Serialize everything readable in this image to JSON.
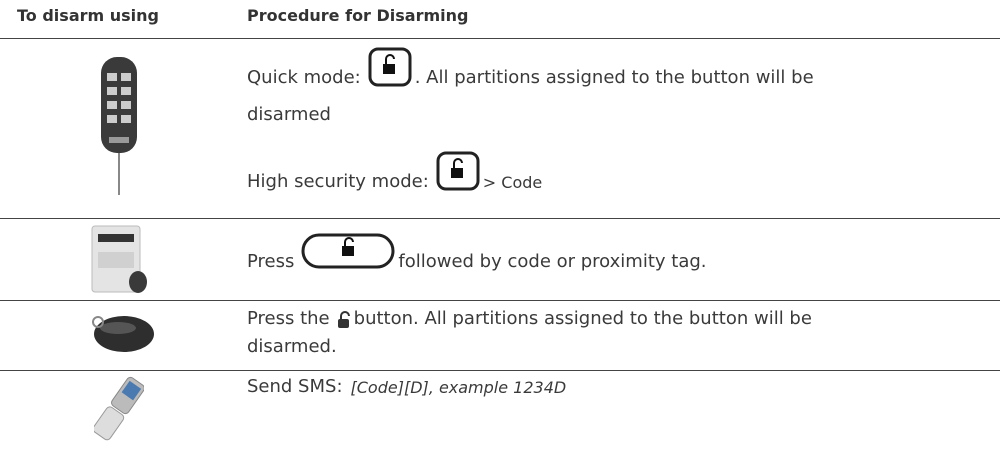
{
  "table": {
    "headers": [
      "To disarm using",
      "Procedure for Disarming"
    ],
    "rows": [
      {
        "segments": [
          "Quick mode:",
          ". All partitions assigned to the button will be",
          "disarmed",
          "High security mode:",
          "> Code"
        ]
      },
      {
        "segments": [
          "Press",
          "followed by code or proximity tag."
        ]
      },
      {
        "segments": [
          "Press the",
          "button. All partitions assigned to the button will be",
          "disarmed."
        ]
      },
      {
        "segments": [
          "Send SMS:",
          "[Code][D], example 1234D"
        ]
      }
    ]
  }
}
